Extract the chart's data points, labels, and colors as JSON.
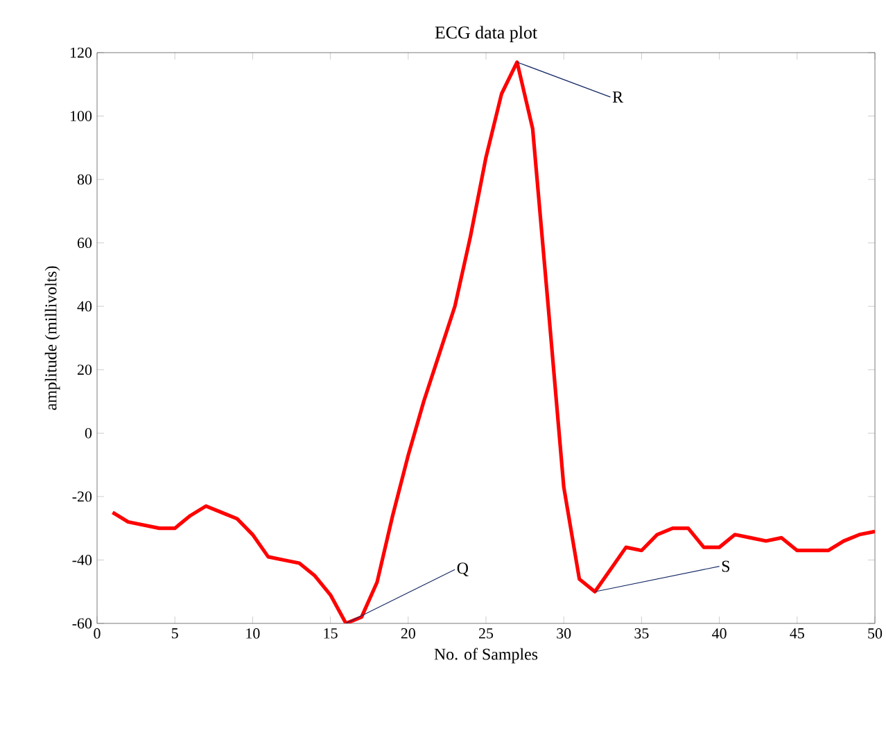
{
  "chart_data": {
    "type": "line",
    "title": "ECG data plot",
    "xlabel": "No. of Samples",
    "ylabel": "amplitude (millivolts)",
    "x": [
      1,
      2,
      3,
      4,
      5,
      6,
      7,
      8,
      9,
      10,
      11,
      12,
      13,
      14,
      15,
      16,
      17,
      18,
      19,
      20,
      21,
      22,
      23,
      24,
      25,
      26,
      27,
      28,
      29,
      30,
      31,
      32,
      33,
      34,
      35,
      36,
      37,
      38,
      39,
      40,
      41,
      42,
      43,
      44,
      45,
      46,
      47,
      48,
      49,
      50
    ],
    "series": [
      {
        "color": "#ff0000",
        "values": [
          -25,
          -28,
          -29,
          -30,
          -30,
          -26,
          -23,
          -25,
          -27,
          -32,
          -39,
          -40,
          -41,
          -45,
          -51,
          -60,
          -58,
          -47,
          -26,
          -7,
          10,
          25,
          40,
          62,
          87,
          107,
          117,
          96,
          40,
          -17,
          -46,
          -50,
          -43,
          -36,
          -37,
          -32,
          -30,
          -30,
          -36,
          -36,
          -32,
          -33,
          -34,
          -33,
          -37,
          -37,
          -37,
          -34,
          -32,
          -31
        ]
      }
    ],
    "xlim": [
      0,
      50
    ],
    "ylim": [
      -60,
      120
    ],
    "xticks": [
      0,
      5,
      10,
      15,
      20,
      25,
      30,
      35,
      40,
      45,
      50
    ],
    "yticks": [
      -60,
      -40,
      -20,
      0,
      20,
      40,
      60,
      80,
      100,
      120
    ],
    "grid": false,
    "marker": "none",
    "line_style": "solid",
    "annotations": [
      {
        "text": "Q",
        "x": 16,
        "y": -60
      },
      {
        "text": "R",
        "x": 27,
        "y": 117
      },
      {
        "text": "S",
        "x": 32,
        "y": -50
      }
    ]
  }
}
